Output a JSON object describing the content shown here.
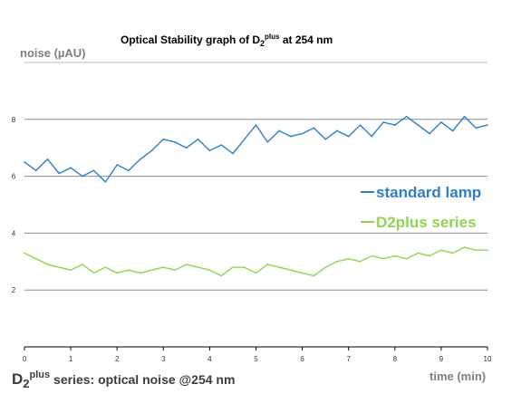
{
  "title": {
    "prefix": "Optical Stability graph of D",
    "sub": "2",
    "sup": "plus",
    "suffix": " at 254 nm"
  },
  "caption": {
    "d": "D",
    "sub": "2",
    "sup": "plus",
    "rest": " series: optical noise @254 nm"
  },
  "chart_data": {
    "type": "line",
    "xlabel": "time (min)",
    "ylabel": "noise (µAU)",
    "xlim": [
      0,
      10
    ],
    "ylim": [
      0,
      10
    ],
    "xticks": [
      0,
      1,
      2,
      3,
      4,
      5,
      6,
      7,
      8,
      9,
      10
    ],
    "yticks": [
      2,
      4,
      6,
      8
    ],
    "grid": "horizontal",
    "legend_position": "right",
    "series": [
      {
        "name": "standard lamp",
        "color": "#2f7ec7",
        "x": [
          0.0,
          0.25,
          0.5,
          0.75,
          1.0,
          1.25,
          1.5,
          1.75,
          2.0,
          2.25,
          2.5,
          2.75,
          3.0,
          3.25,
          3.5,
          3.75,
          4.0,
          4.25,
          4.5,
          4.75,
          5.0,
          5.25,
          5.5,
          5.75,
          6.0,
          6.25,
          6.5,
          6.75,
          7.0,
          7.25,
          7.5,
          7.75,
          8.0,
          8.25,
          8.5,
          8.75,
          9.0,
          9.25,
          9.5,
          9.75,
          10.0
        ],
        "y": [
          6.5,
          6.2,
          6.6,
          6.1,
          6.3,
          6.0,
          6.2,
          5.8,
          6.4,
          6.2,
          6.6,
          6.9,
          7.3,
          7.2,
          7.0,
          7.3,
          6.9,
          7.1,
          6.8,
          7.3,
          7.8,
          7.2,
          7.6,
          7.4,
          7.5,
          7.7,
          7.3,
          7.6,
          7.4,
          7.8,
          7.4,
          7.9,
          7.8,
          8.1,
          7.8,
          7.5,
          7.9,
          7.6,
          8.1,
          7.7,
          7.8
        ]
      },
      {
        "name": "D2plus series",
        "color": "#8fd44f",
        "x": [
          0.0,
          0.25,
          0.5,
          0.75,
          1.0,
          1.25,
          1.5,
          1.75,
          2.0,
          2.25,
          2.5,
          2.75,
          3.0,
          3.25,
          3.5,
          3.75,
          4.0,
          4.25,
          4.5,
          4.75,
          5.0,
          5.25,
          5.5,
          5.75,
          6.0,
          6.25,
          6.5,
          6.75,
          7.0,
          7.25,
          7.5,
          7.75,
          8.0,
          8.25,
          8.5,
          8.75,
          9.0,
          9.25,
          9.5,
          9.75,
          10.0
        ],
        "y": [
          3.3,
          3.1,
          2.9,
          2.8,
          2.7,
          2.9,
          2.6,
          2.8,
          2.6,
          2.7,
          2.6,
          2.7,
          2.8,
          2.7,
          2.9,
          2.8,
          2.7,
          2.5,
          2.8,
          2.8,
          2.6,
          2.9,
          2.8,
          2.7,
          2.6,
          2.5,
          2.8,
          3.0,
          3.1,
          3.0,
          3.2,
          3.1,
          3.2,
          3.1,
          3.3,
          3.2,
          3.4,
          3.3,
          3.5,
          3.4,
          3.4
        ]
      }
    ]
  }
}
